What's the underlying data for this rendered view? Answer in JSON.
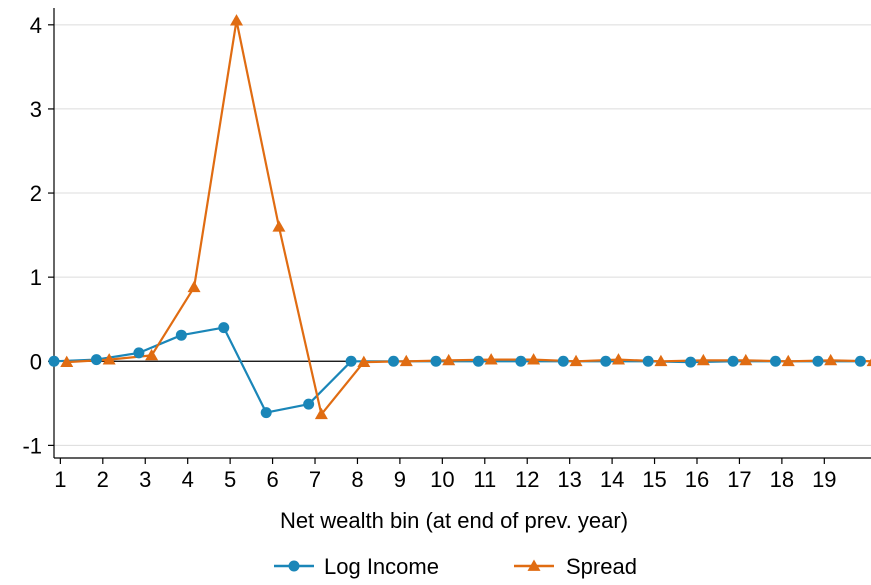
{
  "chart_data": {
    "type": "line",
    "title": "",
    "xlabel": "Net wealth bin (at end of prev. year)",
    "ylabel": "",
    "x_ticks": [
      "1",
      "2",
      "3",
      "4",
      "5",
      "6",
      "7",
      "8",
      "9",
      "10",
      "11",
      "12",
      "13",
      "14",
      "15",
      "16",
      "17",
      "18",
      "19"
    ],
    "y_ticks": [
      "-1",
      "0",
      "1",
      "2",
      "3",
      "4"
    ],
    "xlim": [
      0.85,
      20.1
    ],
    "ylim": [
      -1.15,
      4.2
    ],
    "grid": true,
    "zero_line": true,
    "legend_position": "bottom",
    "series": [
      {
        "name": "Log Income",
        "color": "#1a86b8",
        "marker": "circle",
        "x": [
          0.85,
          1.85,
          2.85,
          3.85,
          4.85,
          5.85,
          6.85,
          7.85,
          8.85,
          9.85,
          10.85,
          11.85,
          12.85,
          13.85,
          14.85,
          15.85,
          16.85,
          17.85,
          18.85,
          19.85
        ],
        "values": [
          0,
          0.02,
          0.1,
          0.31,
          0.4,
          -0.61,
          -0.51,
          0,
          0,
          0,
          0,
          0,
          0,
          0,
          0,
          -0.01,
          0,
          0,
          0,
          0
        ]
      },
      {
        "name": "Spread",
        "color": "#e06c12",
        "marker": "triangle",
        "x": [
          1.15,
          2.15,
          3.15,
          4.15,
          5.15,
          6.15,
          7.15,
          8.15,
          9.15,
          10.15,
          11.15,
          12.15,
          13.15,
          14.15,
          15.15,
          16.15,
          17.15,
          18.15,
          19.15,
          20.15
        ],
        "values": [
          -0.01,
          0.02,
          0.07,
          0.88,
          4.05,
          1.6,
          -0.63,
          -0.01,
          0,
          0.01,
          0.02,
          0.02,
          0,
          0.02,
          0,
          0.01,
          0.01,
          0,
          0.01,
          0
        ]
      }
    ]
  }
}
